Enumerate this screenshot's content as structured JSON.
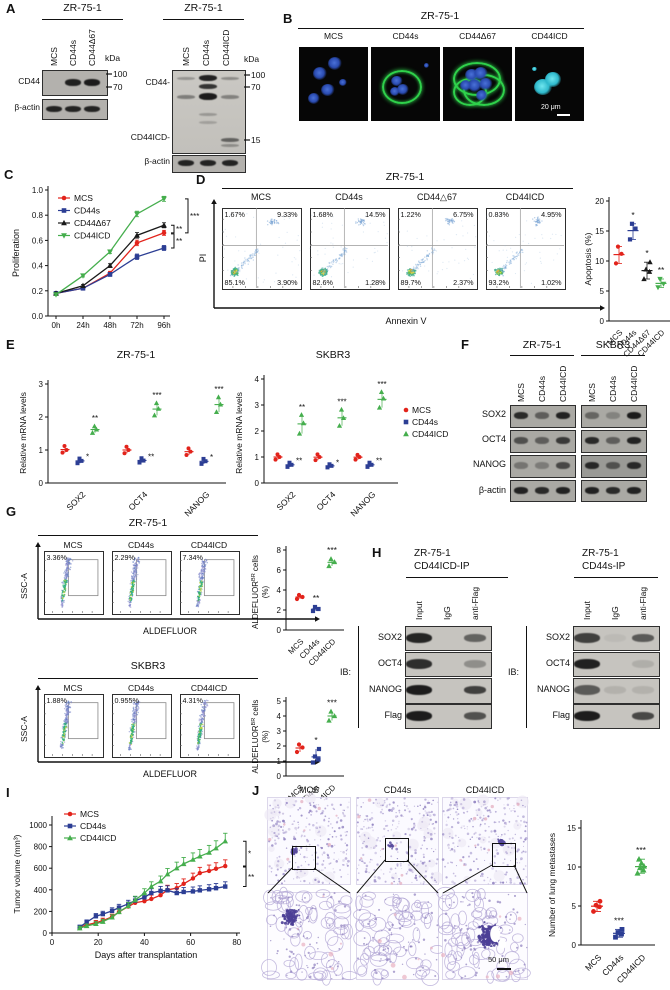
{
  "colors": {
    "red": "#e2231b",
    "blue": "#2c3e94",
    "green": "#45ae4d",
    "black": "#1a1a1a"
  },
  "panel_a": {
    "label": "A",
    "blot_left": {
      "title": "ZR-75-1",
      "kda": "kDa",
      "lanes": [
        "MCS",
        "CD44s",
        "CD44Δ67"
      ],
      "markers": [
        "100",
        "70"
      ],
      "row1": "CD44",
      "row2": "β-actin"
    },
    "blot_right": {
      "title": "ZR-75-1",
      "kda": "kDa",
      "lanes": [
        "MCS",
        "CD44s",
        "CD44ICD"
      ],
      "markers": [
        "100",
        "70",
        "15"
      ],
      "row1": "CD44-",
      "row2": "CD44ICD-",
      "row3": "β-actin"
    }
  },
  "panel_b": {
    "label": "B",
    "title": "ZR-75-1",
    "columns": [
      "MCS",
      "CD44s",
      "CD44Δ67",
      "CD44ICD"
    ],
    "scale_bar": "20 μm"
  },
  "panel_c": {
    "label": "C",
    "ylabel": "Proliferation",
    "xticks": [
      "0h",
      "24h",
      "48h",
      "72h",
      "96h"
    ],
    "yticks": [
      "0.0",
      "0.2",
      "0.4",
      "0.6",
      "0.8",
      "1.0"
    ],
    "errors": [
      0.008,
      0.01,
      0.015,
      0.022,
      0.02
    ],
    "series": [
      {
        "name": "MCS",
        "color": "red",
        "marker": "circle",
        "values": [
          0.18,
          0.22,
          0.34,
          0.58,
          0.66
        ]
      },
      {
        "name": "CD44s",
        "color": "blue",
        "marker": "square",
        "values": [
          0.18,
          0.22,
          0.33,
          0.47,
          0.54
        ]
      },
      {
        "name": "CD44Δ67",
        "color": "black",
        "marker": "tri-up",
        "values": [
          0.18,
          0.24,
          0.4,
          0.64,
          0.72
        ]
      },
      {
        "name": "CD44ICD",
        "color": "green",
        "marker": "tri-down",
        "values": [
          0.17,
          0.32,
          0.51,
          0.81,
          0.93
        ]
      }
    ],
    "sig": [
      {
        "label": "**"
      },
      {
        "label": "**"
      },
      {
        "label": "***"
      }
    ]
  },
  "panel_d": {
    "label": "D",
    "title": "ZR-75-1",
    "xlabel": "Annexin V",
    "ylabel": "PI",
    "plots": [
      {
        "name": "MCS",
        "ul": "1.67%",
        "ur": "9.33%",
        "ll": "85.1%",
        "lr": "3.90%"
      },
      {
        "name": "CD44s",
        "ul": "1.68%",
        "ur": "14.5%",
        "ll": "82.6%",
        "lr": "1.28%"
      },
      {
        "name": "CD44△67",
        "ul": "1.22%",
        "ur": "6.75%",
        "ll": "89.7%",
        "lr": "2.37%"
      },
      {
        "name": "CD44ICD",
        "ul": "0.83%",
        "ur": "4.95%",
        "ll": "93.2%",
        "lr": "1.02%"
      }
    ],
    "scatter": {
      "ylabel": "Apoptosis (%)",
      "ymax": 20,
      "yticks": [
        0,
        5,
        10,
        15,
        20
      ],
      "groups": [
        {
          "name": "MCS",
          "color": "red",
          "marker": "circle",
          "points": [
            9.6,
            11.2,
            12.4
          ],
          "sig": ""
        },
        {
          "name": "CD44s",
          "color": "blue",
          "marker": "square",
          "points": [
            13.6,
            15.4,
            16.2
          ],
          "sig": "*"
        },
        {
          "name": "CD44Δ67",
          "color": "black",
          "marker": "tri-up",
          "points": [
            7.0,
            8.2,
            8.6,
            9.8
          ],
          "sig": "*"
        },
        {
          "name": "CD44ICD",
          "color": "green",
          "marker": "tri-down",
          "points": [
            5.6,
            6.2,
            7.0
          ],
          "sig": "**"
        }
      ]
    }
  },
  "panel_e": {
    "label": "E",
    "legend": [
      {
        "name": "MCS",
        "color": "red",
        "marker": "circle"
      },
      {
        "name": "CD44s",
        "color": "blue",
        "marker": "square"
      },
      {
        "name": "CD44ICD",
        "color": "green",
        "marker": "tri-up"
      }
    ],
    "charts": [
      {
        "title": "ZR-75-1",
        "ylabel": "Relative mRNA levels",
        "ymax": 3,
        "yticks": [
          0,
          1,
          2,
          3
        ],
        "categories": [
          "SOX2",
          "OCT4",
          "NANOG"
        ],
        "mcs": [
          [
            0.92,
            1.0,
            1.12
          ],
          [
            0.9,
            1.0,
            1.1
          ],
          [
            0.85,
            0.95,
            1.05
          ]
        ],
        "cd44s": [
          [
            0.6,
            0.67,
            0.74
          ],
          [
            0.62,
            0.68,
            0.75
          ],
          [
            0.58,
            0.66,
            0.73
          ]
        ],
        "cd44icd": [
          [
            1.52,
            1.62,
            1.72
          ],
          [
            2.05,
            2.25,
            2.42
          ],
          [
            2.15,
            2.38,
            2.6
          ]
        ],
        "sig_cd44s": [
          "*",
          "**",
          "*"
        ],
        "sig_cd44icd": [
          "**",
          "***",
          "***"
        ]
      },
      {
        "title": "SKBR3",
        "ylabel": "Relative mRNA levels",
        "ymax": 4,
        "yticks": [
          0,
          1,
          2,
          3,
          4
        ],
        "categories": [
          "SOX2",
          "OCT4",
          "NANOG"
        ],
        "mcs": [
          [
            0.9,
            1.0,
            1.1
          ],
          [
            0.88,
            1.0,
            1.1
          ],
          [
            0.9,
            1.0,
            1.08
          ]
        ],
        "cd44s": [
          [
            0.62,
            0.7,
            0.78
          ],
          [
            0.6,
            0.66,
            0.72
          ],
          [
            0.62,
            0.7,
            0.78
          ]
        ],
        "cd44icd": [
          [
            1.9,
            2.3,
            2.62
          ],
          [
            2.2,
            2.5,
            2.82
          ],
          [
            2.9,
            3.25,
            3.5
          ]
        ],
        "sig_cd44s": [
          "**",
          "*",
          "**"
        ],
        "sig_cd44icd": [
          "**",
          "***",
          "***"
        ]
      }
    ]
  },
  "panel_f": {
    "label": "F",
    "groups": [
      {
        "title": "ZR-75-1",
        "lanes": [
          "MCS",
          "CD44s",
          "CD44ICD"
        ]
      },
      {
        "title": "SKBR3",
        "lanes": [
          "MCS",
          "CD44s",
          "CD44ICD"
        ]
      }
    ],
    "rows": [
      {
        "label": "SOX2",
        "bands": [
          [
            0.85,
            0.5,
            0.9
          ],
          [
            0.45,
            0.25,
            0.95
          ]
        ]
      },
      {
        "label": "OCT4",
        "bands": [
          [
            0.6,
            0.5,
            0.75
          ],
          [
            0.85,
            0.5,
            0.9
          ]
        ]
      },
      {
        "label": "NANOG",
        "bands": [
          [
            0.35,
            0.3,
            0.65
          ],
          [
            0.85,
            0.55,
            0.85
          ]
        ]
      },
      {
        "label": "β-actin",
        "bands": [
          [
            0.9,
            0.85,
            0.9
          ],
          [
            0.9,
            0.85,
            0.9
          ]
        ]
      }
    ]
  },
  "panel_g": {
    "label": "G",
    "sections": [
      {
        "title": "ZR-75-1",
        "xlabel": "ALDEFLUOR",
        "ylabel": "SSC-A",
        "plots": [
          {
            "name": "MCS",
            "pct": "3.36%"
          },
          {
            "name": "CD44s",
            "pct": "2.29%"
          },
          {
            "name": "CD44ICD",
            "pct": "7.34%"
          }
        ],
        "scatter": {
          "ylabel_pre": "ALDEFLUOR",
          "ylabel_sup": "BR",
          "ylabel_post": " cells",
          "ylabel_unit": "(%)",
          "ymax": 8,
          "yticks": [
            0,
            2,
            4,
            6,
            8
          ],
          "groups": [
            {
              "name": "MCS",
              "color": "red",
              "marker": "circle",
              "points": [
                3.1,
                3.3,
                3.5
              ],
              "sig": ""
            },
            {
              "name": "CD44s",
              "color": "blue",
              "marker": "square",
              "points": [
                1.9,
                2.1,
                2.3
              ],
              "sig": "**"
            },
            {
              "name": "CD44ICD",
              "color": "green",
              "marker": "tri-up",
              "points": [
                6.4,
                6.8,
                7.1
              ],
              "sig": "***"
            }
          ]
        }
      },
      {
        "title": "SKBR3",
        "xlabel": "ALDEFLUOR",
        "ylabel": "SSC-A",
        "plots": [
          {
            "name": "MCS",
            "pct": "1.88%"
          },
          {
            "name": "CD44s",
            "pct": "0.955%"
          },
          {
            "name": "CD44ICD",
            "pct": "4.31%"
          }
        ],
        "scatter": {
          "ylabel_pre": "ALDEFLUOR",
          "ylabel_sup": "BR",
          "ylabel_post": " cells",
          "ylabel_unit": "(%)",
          "ymax": 5,
          "yticks": [
            0,
            1,
            2,
            3,
            4,
            5
          ],
          "groups": [
            {
              "name": "MCS",
              "color": "red",
              "marker": "circle",
              "points": [
                1.6,
                1.9,
                2.1
              ],
              "sig": ""
            },
            {
              "name": "CD44s",
              "color": "blue",
              "marker": "square",
              "points": [
                0.9,
                1.1,
                1.3,
                1.8
              ],
              "sig": "*"
            },
            {
              "name": "CD44ICD",
              "color": "green",
              "marker": "tri-up",
              "points": [
                3.7,
                4.0,
                4.3
              ],
              "sig": "***"
            }
          ]
        }
      }
    ]
  },
  "panel_h": {
    "label": "H",
    "blots": [
      {
        "title1": "ZR-75-1",
        "title2": "CD44ICD-IP",
        "ib": "IB:",
        "lanes": [
          "Input",
          "IgG",
          "anti-Flag"
        ],
        "rows": [
          {
            "label": "SOX2",
            "bands": [
              0.9,
              0,
              0.55
            ]
          },
          {
            "label": "OCT4",
            "bands": [
              0.85,
              0,
              0.3
            ]
          },
          {
            "label": "NANOG",
            "bands": [
              0.95,
              0,
              0.75
            ]
          },
          {
            "label": "Flag",
            "bands": [
              0.95,
              0,
              0.65
            ]
          }
        ]
      },
      {
        "title1": "ZR-75-1",
        "title2": "CD44s-IP",
        "ib": "IB:",
        "lanes": [
          "Input",
          "IgG",
          "anti-Flag"
        ],
        "rows": [
          {
            "label": "SOX2",
            "bands": [
              0.75,
              0.05,
              0.6
            ]
          },
          {
            "label": "OCT4",
            "bands": [
              0.92,
              0.03,
              0.12
            ]
          },
          {
            "label": "NANOG",
            "bands": [
              0.6,
              0.1,
              0.1
            ]
          },
          {
            "label": "Flag",
            "bands": [
              0.95,
              0,
              0.7
            ]
          }
        ]
      }
    ]
  },
  "panel_i": {
    "label": "I",
    "ylabel": "Tumor volume (mm³)",
    "xlabel": "Days after transplantation",
    "xticks": [
      0,
      20,
      40,
      60,
      80
    ],
    "yticks": [
      0,
      200,
      400,
      600,
      800,
      1000
    ],
    "days": [
      12,
      15,
      19,
      22,
      26,
      29,
      33,
      36,
      40,
      43,
      47,
      50,
      54,
      57,
      61,
      64,
      68,
      71,
      75
    ],
    "series": [
      {
        "name": "MCS",
        "color": "red",
        "marker": "circle",
        "values": [
          50,
          75,
          95,
          115,
          150,
          195,
          245,
          280,
          295,
          315,
          350,
          400,
          415,
          455,
          505,
          555,
          575,
          595,
          620
        ]
      },
      {
        "name": "CD44s",
        "color": "blue",
        "marker": "square",
        "values": [
          55,
          100,
          155,
          175,
          205,
          235,
          270,
          300,
          330,
          370,
          390,
          395,
          370,
          380,
          385,
          395,
          405,
          415,
          430
        ]
      },
      {
        "name": "CD44ICD",
        "color": "green",
        "marker": "tri-up",
        "values": [
          45,
          65,
          85,
          105,
          145,
          195,
          250,
          305,
          370,
          430,
          480,
          545,
          600,
          640,
          680,
          710,
          745,
          785,
          850
        ]
      }
    ],
    "sig": [
      {
        "label": "*"
      },
      {
        "label": "**"
      }
    ]
  },
  "panel_j": {
    "label": "J",
    "columns": [
      "MCS",
      "CD44s",
      "CD44ICD"
    ],
    "scale_bar": "50 μm",
    "scatter": {
      "ylabel": "Number of lung metastases",
      "ymax": 15,
      "yticks": [
        0,
        5,
        10,
        15
      ],
      "groups": [
        {
          "name": "MCS",
          "color": "red",
          "marker": "circle",
          "points": [
            4.3,
            4.9,
            5.1,
            5.6
          ],
          "sig": ""
        },
        {
          "name": "CD44s",
          "color": "blue",
          "marker": "square",
          "points": [
            1.0,
            1.4,
            1.6,
            2.0
          ],
          "sig": "***"
        },
        {
          "name": "CD44ICD",
          "color": "green",
          "marker": "tri-up",
          "points": [
            9.2,
            9.6,
            9.9,
            10.1,
            10.5,
            11.0
          ],
          "sig": "***"
        }
      ]
    }
  }
}
